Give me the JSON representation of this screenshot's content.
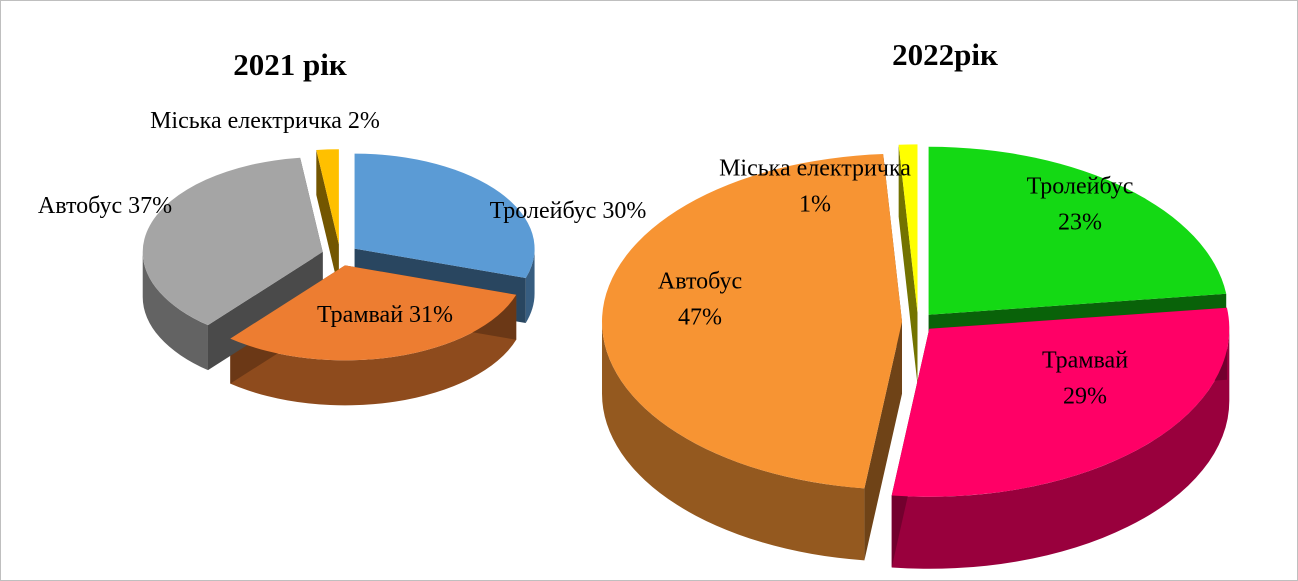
{
  "chart_data": [
    {
      "type": "pie",
      "title": "2021 рік",
      "categories": [
        "Тролейбус",
        "Трамвай",
        "Автобус",
        "Міська електричка"
      ],
      "values": [
        30,
        31,
        37,
        2
      ],
      "value_labels": [
        "30%",
        "31%",
        "37%",
        "2%"
      ],
      "colors": [
        "#5b9bd5",
        "#ed7d31",
        "#a5a5a5",
        "#ffc000"
      ]
    },
    {
      "type": "pie",
      "title": "2022рік",
      "categories": [
        "Тролейбус",
        "Трамвай",
        "Автобус",
        "Міська електричка"
      ],
      "values": [
        23,
        29,
        47,
        1
      ],
      "value_labels": [
        "23%",
        "29%",
        "47%",
        "1%"
      ],
      "colors": [
        "#14d914",
        "#ff0066",
        "#f79433",
        "#ffff00"
      ]
    }
  ]
}
